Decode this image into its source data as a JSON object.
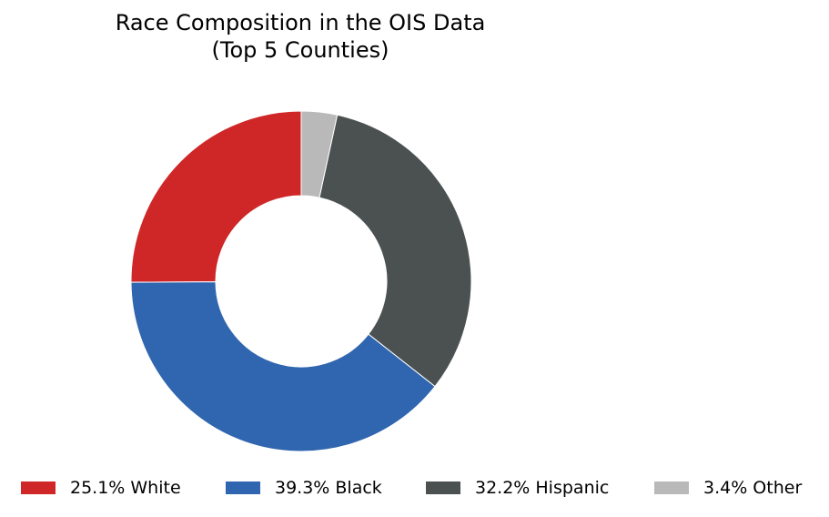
{
  "chart_data": {
    "type": "pie",
    "style": "donut",
    "title_line1": "Race Composition in the OIS Data",
    "title_line2": "(Top 5 Counties)",
    "slices": [
      {
        "label": "White",
        "value": 25.1,
        "color": "#cf2727"
      },
      {
        "label": "Black",
        "value": 39.3,
        "color": "#3066af"
      },
      {
        "label": "Hispanic",
        "value": 32.2,
        "color": "#4b5151"
      },
      {
        "label": "Other",
        "value": 3.4,
        "color": "#b8b9b8"
      }
    ],
    "legend_labels": [
      "25.1% White",
      "39.3% Black",
      "32.2% Hispanic",
      "3.4% Other"
    ],
    "legend_position": "bottom",
    "start_angle_deg": 90,
    "direction": "counterclockwise"
  }
}
